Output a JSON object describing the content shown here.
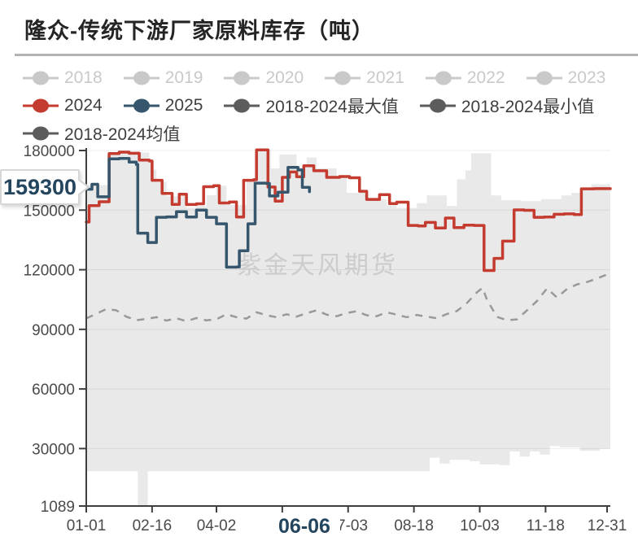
{
  "title": "隆众-传统下游厂家原料库存（吨）",
  "watermark": "紫金天风期货",
  "colors": {
    "accent_red": "#c43b2f",
    "accent_navy": "#35566c",
    "band_fill": "#e9e9e9",
    "mean_gray": "#999999",
    "muted_legend": "#c9c9c9",
    "dark_legend_marker": "#5c5c5c",
    "axis": "#3f3f3f",
    "tick_label": "#4a4a4a",
    "watermark_gray": "#cccccc",
    "callout_text": "#24455e"
  },
  "legend": {
    "items": [
      {
        "label": "2018",
        "color": "#c9c9c9",
        "muted": true
      },
      {
        "label": "2019",
        "color": "#c9c9c9",
        "muted": true
      },
      {
        "label": "2020",
        "color": "#c9c9c9",
        "muted": true
      },
      {
        "label": "2021",
        "color": "#c9c9c9",
        "muted": true
      },
      {
        "label": "2022",
        "color": "#c9c9c9",
        "muted": true
      },
      {
        "label": "2023",
        "color": "#c9c9c9",
        "muted": true
      },
      {
        "label": "2024",
        "color": "#c43b2f",
        "muted": false
      },
      {
        "label": "2025",
        "color": "#35566c",
        "muted": false
      },
      {
        "label": "2018-2024最大值",
        "color": "#5c5c5c",
        "muted": false
      },
      {
        "label": "2018-2024最小值",
        "color": "#5c5c5c",
        "muted": false
      },
      {
        "label": "2018-2024均值",
        "color": "#5c5c5c",
        "muted": false
      }
    ]
  },
  "callouts": {
    "latest_value": "159300",
    "latest_date": "06-06"
  },
  "chart_data": {
    "type": "line",
    "title": "隆众-传统下游厂家原料库存（吨）",
    "x_axis": {
      "unit": "month-day",
      "range_days": [
        1,
        365
      ],
      "ticks": [
        {
          "day": 1,
          "label": "01-01"
        },
        {
          "day": 47,
          "label": "02-16"
        },
        {
          "day": 92,
          "label": "04-02"
        },
        {
          "day": 138,
          "label": "05-18"
        },
        {
          "day": 184,
          "label": "07-03"
        },
        {
          "day": 230,
          "label": "08-18"
        },
        {
          "day": 276,
          "label": "10-03"
        },
        {
          "day": 322,
          "label": "11-18"
        },
        {
          "day": 365,
          "label": "12-31"
        }
      ]
    },
    "y_axis": {
      "range": [
        1089,
        180000
      ],
      "ticks": [
        1089,
        30000,
        60000,
        90000,
        120000,
        150000,
        180000
      ]
    },
    "series": [
      {
        "name": "2018-2024最大值",
        "role": "band-top",
        "color": "#e9e9e9",
        "points": [
          [
            1,
            162500
          ],
          [
            10,
            162600
          ],
          [
            17,
            179300
          ],
          [
            38,
            179000
          ],
          [
            45,
            175500
          ],
          [
            47,
            170400
          ],
          [
            50,
            164200
          ],
          [
            57,
            157000
          ],
          [
            71,
            151200
          ],
          [
            78,
            152100
          ],
          [
            85,
            157500
          ],
          [
            92,
            162300
          ],
          [
            99,
            152600
          ],
          [
            113,
            165600
          ],
          [
            120,
            180400
          ],
          [
            130,
            171000
          ],
          [
            136,
            178000
          ],
          [
            148,
            171500
          ],
          [
            155,
            176500
          ],
          [
            162,
            171000
          ],
          [
            176,
            166400
          ],
          [
            183,
            158700
          ],
          [
            197,
            155400
          ],
          [
            211,
            152500
          ],
          [
            218,
            151100
          ],
          [
            232,
            153500
          ],
          [
            239,
            157400
          ],
          [
            253,
            152100
          ],
          [
            260,
            165500
          ],
          [
            266,
            170000
          ],
          [
            270,
            178600
          ],
          [
            284,
            157400
          ],
          [
            291,
            155000
          ],
          [
            305,
            154500
          ],
          [
            319,
            155500
          ],
          [
            333,
            157400
          ],
          [
            340,
            158700
          ],
          [
            347,
            160900
          ],
          [
            354,
            163000
          ],
          [
            365,
            163000
          ]
        ]
      },
      {
        "name": "2018-2024最小值",
        "role": "band-bottom",
        "color": "#e9e9e9",
        "points": [
          [
            1,
            18600
          ],
          [
            37,
            1089
          ],
          [
            44,
            18600
          ],
          [
            241,
            25400
          ],
          [
            248,
            22400
          ],
          [
            255,
            24400
          ],
          [
            269,
            23600
          ],
          [
            276,
            22000
          ],
          [
            290,
            21700
          ],
          [
            297,
            28500
          ],
          [
            304,
            26000
          ],
          [
            311,
            28500
          ],
          [
            318,
            27000
          ],
          [
            325,
            31300
          ],
          [
            332,
            30600
          ],
          [
            346,
            28900
          ],
          [
            360,
            29900
          ],
          [
            365,
            29900
          ]
        ]
      },
      {
        "name": "2018-2024均值",
        "role": "mean",
        "color": "#999999",
        "points": [
          [
            1,
            95500
          ],
          [
            8,
            97800
          ],
          [
            15,
            100200
          ],
          [
            22,
            99600
          ],
          [
            29,
            96400
          ],
          [
            36,
            94600
          ],
          [
            43,
            95200
          ],
          [
            50,
            96100
          ],
          [
            57,
            94400
          ],
          [
            64,
            95600
          ],
          [
            71,
            94100
          ],
          [
            78,
            95700
          ],
          [
            85,
            94500
          ],
          [
            92,
            95100
          ],
          [
            99,
            97600
          ],
          [
            106,
            96100
          ],
          [
            113,
            95400
          ],
          [
            120,
            98600
          ],
          [
            127,
            97100
          ],
          [
            134,
            96100
          ],
          [
            141,
            97600
          ],
          [
            148,
            96400
          ],
          [
            155,
            98100
          ],
          [
            162,
            99600
          ],
          [
            169,
            97400
          ],
          [
            176,
            96600
          ],
          [
            183,
            98200
          ],
          [
            190,
            99100
          ],
          [
            197,
            97100
          ],
          [
            204,
            96600
          ],
          [
            211,
            98600
          ],
          [
            218,
            97400
          ],
          [
            225,
            96100
          ],
          [
            232,
            97200
          ],
          [
            239,
            96400
          ],
          [
            246,
            95600
          ],
          [
            253,
            97700
          ],
          [
            260,
            99200
          ],
          [
            267,
            103200
          ],
          [
            274,
            108600
          ],
          [
            278,
            110900
          ],
          [
            281,
            105000
          ],
          [
            288,
            96300
          ],
          [
            295,
            94600
          ],
          [
            302,
            95000
          ],
          [
            309,
            99500
          ],
          [
            316,
            104200
          ],
          [
            323,
            110600
          ],
          [
            330,
            106000
          ],
          [
            337,
            110300
          ],
          [
            344,
            112600
          ],
          [
            351,
            113800
          ],
          [
            358,
            115600
          ],
          [
            365,
            117600
          ]
        ]
      },
      {
        "name": "2024",
        "role": "line",
        "color": "#c43b2f",
        "points": [
          [
            1,
            144000
          ],
          [
            3,
            152300
          ],
          [
            10,
            154200
          ],
          [
            17,
            178500
          ],
          [
            24,
            179200
          ],
          [
            31,
            178600
          ],
          [
            38,
            175200
          ],
          [
            45,
            174700
          ],
          [
            47,
            165000
          ],
          [
            54,
            158400
          ],
          [
            61,
            152900
          ],
          [
            66,
            158000
          ],
          [
            71,
            152800
          ],
          [
            78,
            153200
          ],
          [
            83,
            161800
          ],
          [
            90,
            162300
          ],
          [
            94,
            153600
          ],
          [
            101,
            154100
          ],
          [
            106,
            146500
          ],
          [
            111,
            165000
          ],
          [
            118,
            165300
          ],
          [
            120,
            180300
          ],
          [
            128,
            161600
          ],
          [
            133,
            154500
          ],
          [
            138,
            166500
          ],
          [
            143,
            169200
          ],
          [
            148,
            166800
          ],
          [
            153,
            172300
          ],
          [
            160,
            169800
          ],
          [
            169,
            166500
          ],
          [
            178,
            166900
          ],
          [
            185,
            166300
          ],
          [
            192,
            159500
          ],
          [
            197,
            155400
          ],
          [
            206,
            157800
          ],
          [
            213,
            153300
          ],
          [
            218,
            154000
          ],
          [
            226,
            142300
          ],
          [
            233,
            142000
          ],
          [
            238,
            143800
          ],
          [
            245,
            141000
          ],
          [
            252,
            146000
          ],
          [
            258,
            141200
          ],
          [
            265,
            142400
          ],
          [
            272,
            142300
          ],
          [
            279,
            119600
          ],
          [
            286,
            125700
          ],
          [
            292,
            134400
          ],
          [
            300,
            150100
          ],
          [
            307,
            149900
          ],
          [
            314,
            146400
          ],
          [
            321,
            146500
          ],
          [
            328,
            147900
          ],
          [
            335,
            148100
          ],
          [
            342,
            147800
          ],
          [
            347,
            160700
          ],
          [
            356,
            160800
          ],
          [
            365,
            160800
          ]
        ]
      },
      {
        "name": "2025",
        "role": "line",
        "color": "#35566c",
        "points": [
          [
            1,
            160500
          ],
          [
            5,
            163000
          ],
          [
            9,
            156700
          ],
          [
            17,
            175800
          ],
          [
            24,
            176000
          ],
          [
            31,
            174200
          ],
          [
            36,
            173000
          ],
          [
            37,
            138400
          ],
          [
            44,
            133700
          ],
          [
            50,
            146400
          ],
          [
            57,
            146600
          ],
          [
            64,
            149200
          ],
          [
            71,
            146500
          ],
          [
            78,
            150000
          ],
          [
            85,
            146400
          ],
          [
            92,
            143100
          ],
          [
            99,
            121300
          ],
          [
            106,
            121400
          ],
          [
            108,
            129500
          ],
          [
            114,
            143100
          ],
          [
            119,
            163600
          ],
          [
            127,
            163400
          ],
          [
            129,
            157100
          ],
          [
            135,
            159000
          ],
          [
            142,
            171500
          ],
          [
            149,
            170200
          ],
          [
            152,
            161500
          ],
          [
            157,
            159300
          ]
        ]
      }
    ],
    "hidden_series": [
      "2018",
      "2019",
      "2020",
      "2021",
      "2022",
      "2023"
    ],
    "annotations": {
      "last_point": {
        "series": "2025",
        "day": 157,
        "date_label": "06-06",
        "value": 159300
      }
    },
    "legend_position": "top",
    "grid": true
  }
}
